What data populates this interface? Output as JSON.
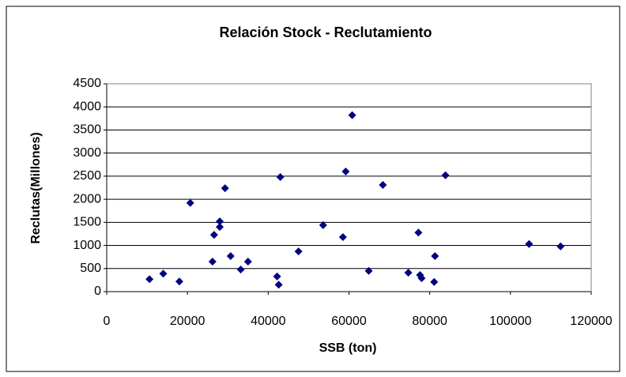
{
  "chart_data": {
    "type": "scatter",
    "title": "Relación Stock - Reclutamiento",
    "x_label": "SSB (ton)",
    "y_label": "Reclutas(Millones)",
    "color": "#000080",
    "grid": true,
    "xlim": [
      0,
      120000
    ],
    "xticks": [
      0,
      20000,
      40000,
      60000,
      80000,
      100000,
      120000
    ],
    "ylim": [
      0,
      4500
    ],
    "yticks": [
      0,
      500,
      1000,
      1500,
      2000,
      2500,
      3000,
      3500,
      4000,
      4500
    ],
    "x": [
      10600,
      14000,
      18000,
      20700,
      26200,
      26600,
      28000,
      28000,
      29300,
      30700,
      33200,
      35000,
      42200,
      42600,
      43000,
      47500,
      53600,
      58500,
      59200,
      60800,
      64900,
      68400,
      74700,
      77200,
      77600,
      78000,
      81100,
      81300,
      83900,
      104600,
      112400
    ],
    "values": [
      270,
      390,
      220,
      1920,
      650,
      1230,
      1520,
      1400,
      2240,
      770,
      480,
      650,
      330,
      150,
      2480,
      870,
      1440,
      1180,
      2600,
      3820,
      450,
      2310,
      410,
      1280,
      360,
      290,
      210,
      770,
      2520,
      1030,
      980
    ]
  }
}
